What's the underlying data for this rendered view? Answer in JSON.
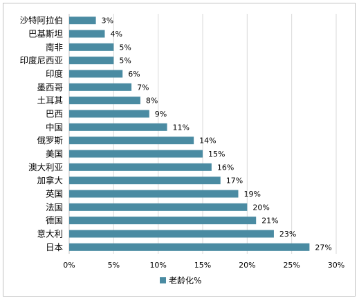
{
  "chart_data": {
    "type": "bar",
    "orientation": "horizontal",
    "categories": [
      "沙特阿拉伯",
      "巴基斯坦",
      "南非",
      "印度尼西亚",
      "印度",
      "墨西哥",
      "土耳其",
      "巴西",
      "中国",
      "俄罗斯",
      "美国",
      "澳大利亚",
      "加拿大",
      "英国",
      "法国",
      "德国",
      "意大利",
      "日本"
    ],
    "series": [
      {
        "name": "老龄化%",
        "values": [
          3,
          4,
          5,
          5,
          6,
          7,
          8,
          9,
          11,
          14,
          15,
          16,
          17,
          19,
          20,
          21,
          23,
          27
        ]
      }
    ],
    "value_labels": [
      "3%",
      "4%",
      "5%",
      "5%",
      "6%",
      "7%",
      "8%",
      "9%",
      "11%",
      "14%",
      "15%",
      "16%",
      "17%",
      "19%",
      "20%",
      "21%",
      "23%",
      "27%"
    ],
    "xlim": [
      0,
      30
    ],
    "x_ticks": [
      "0%",
      "5%",
      "10%",
      "15%",
      "20%",
      "25%",
      "30%"
    ],
    "grid": "vertical",
    "legend_position": "bottom",
    "bar_color": "#4a8ba2"
  }
}
